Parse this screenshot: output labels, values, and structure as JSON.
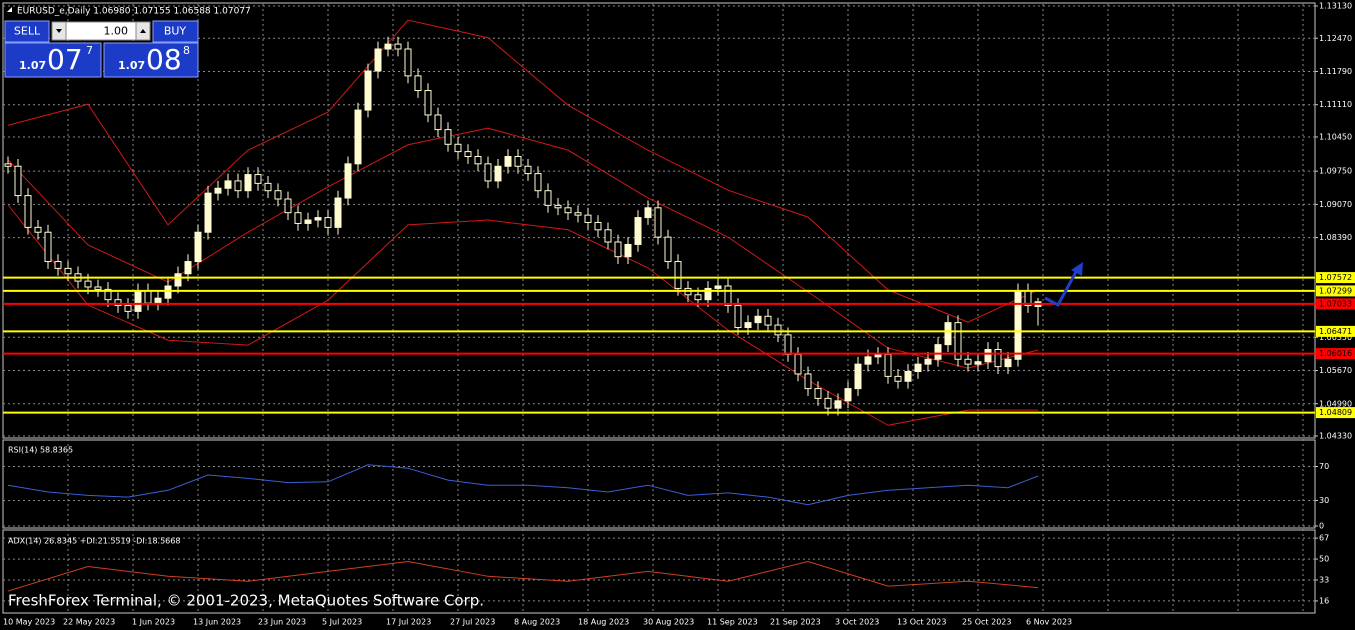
{
  "header": "EURUSD_e,Daily  1.06980 1.07155 1.06588 1.07077",
  "trade_panel": {
    "sell": "SELL",
    "buy": "BUY",
    "lot": "1.00",
    "bid": {
      "big": "1.07",
      "main": "07",
      "sup": "7"
    },
    "ask": {
      "big": "1.07",
      "main": "08",
      "sup": "8"
    }
  },
  "watermark": "FreshForex Terminal, © 2001-2023, MetaQuotes Software Corp.",
  "chart_data": [
    {
      "type": "candlestick",
      "up_color": "#fffbd0",
      "down_color": "#000000",
      "open": [
        1.099,
        1.0985,
        1.0925,
        1.086,
        1.085,
        1.079,
        1.0776,
        1.0765,
        1.075,
        1.0738,
        1.0733,
        1.0712,
        1.07,
        1.0688,
        1.073,
        1.0705,
        1.0715,
        1.074,
        1.0765,
        1.079,
        1.085,
        1.093,
        1.094,
        1.0955,
        1.0935,
        1.0968,
        1.095,
        1.0935,
        1.0918,
        1.089,
        1.0868,
        1.0875,
        1.088,
        1.086,
        1.092,
        1.099,
        1.11,
        1.118,
        1.1225,
        1.1235,
        1.1225,
        1.117,
        1.114,
        1.109,
        1.106,
        1.103,
        1.1015,
        1.1005,
        1.099,
        1.0955,
        1.0985,
        1.1005,
        1.0985,
        1.097,
        1.0935,
        1.0905,
        1.09,
        1.089,
        1.0885,
        1.087,
        1.0855,
        1.083,
        1.08,
        1.0825,
        1.088,
        1.09,
        1.084,
        1.079,
        1.0735,
        1.0722,
        1.0712,
        1.0735,
        1.074,
        1.07,
        1.0655,
        1.0665,
        1.0678,
        1.066,
        1.064,
        1.06,
        1.056,
        1.053,
        1.051,
        1.049,
        1.0505,
        1.053,
        1.058,
        1.0595,
        1.06,
        1.0555,
        1.0545,
        1.0565,
        1.058,
        1.059,
        1.062,
        1.0665,
        1.059,
        1.058,
        1.0585,
        1.061,
        1.0575,
        1.059,
        1.073,
        1.0698
      ],
      "high": [
        1.1005,
        1.1,
        1.094,
        1.0875,
        1.0865,
        1.0805,
        1.0791,
        1.078,
        1.0765,
        1.0753,
        1.0748,
        1.0727,
        1.0715,
        1.0745,
        1.0745,
        1.073,
        1.0755,
        1.078,
        1.0805,
        1.0865,
        1.0945,
        1.0955,
        1.097,
        1.097,
        1.0983,
        1.0983,
        1.0965,
        1.095,
        1.0933,
        1.0905,
        1.089,
        1.0895,
        1.0895,
        1.0935,
        1.1005,
        1.1115,
        1.1195,
        1.124,
        1.125,
        1.125,
        1.124,
        1.1185,
        1.1155,
        1.1105,
        1.1075,
        1.1045,
        1.103,
        1.102,
        1.1005,
        1.1,
        1.102,
        1.102,
        1.1,
        1.0985,
        1.095,
        1.092,
        1.0915,
        1.0905,
        1.09,
        1.0885,
        1.087,
        1.0845,
        1.084,
        1.0895,
        1.0915,
        1.0915,
        1.0855,
        1.0805,
        1.075,
        1.0737,
        1.075,
        1.0755,
        1.0755,
        1.0715,
        1.068,
        1.0693,
        1.0693,
        1.0675,
        1.0655,
        1.0615,
        1.0575,
        1.0545,
        1.0525,
        1.052,
        1.0545,
        1.0595,
        1.061,
        1.0615,
        1.0615,
        1.057,
        1.058,
        1.0595,
        1.0605,
        1.0635,
        1.068,
        1.068,
        1.0605,
        1.06,
        1.0625,
        1.0625,
        1.0605,
        1.0745,
        1.0745,
        1.07155
      ],
      "low": [
        1.097,
        1.091,
        1.0845,
        1.0835,
        1.0775,
        1.0761,
        1.075,
        1.0735,
        1.0723,
        1.0718,
        1.0697,
        1.0685,
        1.0673,
        1.0673,
        1.069,
        1.069,
        1.07,
        1.0725,
        1.075,
        1.0775,
        1.0835,
        1.0915,
        1.0925,
        1.092,
        1.092,
        1.0935,
        1.092,
        1.0903,
        1.0875,
        1.0853,
        1.0853,
        1.086,
        1.0845,
        1.0845,
        1.0905,
        1.0975,
        1.1085,
        1.1165,
        1.121,
        1.121,
        1.1155,
        1.1125,
        1.1075,
        1.1045,
        1.1015,
        1.1,
        1.099,
        1.0975,
        1.094,
        1.094,
        1.097,
        1.097,
        1.0955,
        1.092,
        1.089,
        1.0885,
        1.0875,
        1.087,
        1.0855,
        1.084,
        1.0815,
        1.0785,
        1.0785,
        1.081,
        1.0865,
        1.0825,
        1.0775,
        1.072,
        1.0707,
        1.0697,
        1.0697,
        1.072,
        1.0685,
        1.064,
        1.064,
        1.065,
        1.0645,
        1.0625,
        1.0585,
        1.0545,
        1.0515,
        1.0495,
        1.0475,
        1.0475,
        1.049,
        1.0515,
        1.0565,
        1.058,
        1.054,
        1.053,
        1.053,
        1.055,
        1.0565,
        1.0575,
        1.0605,
        1.0575,
        1.0565,
        1.0565,
        1.057,
        1.056,
        1.056,
        1.0575,
        1.0685,
        1.06588
      ],
      "close": [
        1.0985,
        1.0925,
        1.086,
        1.085,
        1.079,
        1.0776,
        1.0765,
        1.075,
        1.0738,
        1.0733,
        1.0712,
        1.07,
        1.0688,
        1.073,
        1.0705,
        1.0715,
        1.074,
        1.0765,
        1.079,
        1.085,
        1.093,
        1.094,
        1.0955,
        1.0935,
        1.0968,
        1.095,
        1.0935,
        1.0918,
        1.089,
        1.0868,
        1.0875,
        1.088,
        1.086,
        1.092,
        1.099,
        1.11,
        1.118,
        1.1225,
        1.1235,
        1.1225,
        1.117,
        1.114,
        1.109,
        1.106,
        1.103,
        1.1015,
        1.1005,
        1.099,
        1.0955,
        1.0985,
        1.1005,
        1.0985,
        1.097,
        1.0935,
        1.0905,
        1.09,
        1.089,
        1.0885,
        1.087,
        1.0855,
        1.083,
        1.08,
        1.0825,
        1.088,
        1.09,
        1.084,
        1.079,
        1.0735,
        1.0722,
        1.0712,
        1.0735,
        1.074,
        1.07,
        1.0655,
        1.0665,
        1.0678,
        1.066,
        1.064,
        1.06,
        1.056,
        1.053,
        1.051,
        1.049,
        1.0505,
        1.053,
        1.058,
        1.0595,
        1.06,
        1.0555,
        1.0545,
        1.0565,
        1.058,
        1.059,
        1.062,
        1.0665,
        1.059,
        1.058,
        1.0585,
        1.061,
        1.0575,
        1.059,
        1.073,
        1.07,
        1.07077
      ],
      "overlays": [
        {
          "color": "#d01818",
          "x": [
            0,
            8,
            16,
            24,
            32,
            40,
            48,
            56,
            64,
            72,
            80,
            88,
            96,
            103
          ],
          "values": [
            1.1069,
            1.1112,
            1.0865,
            1.1018,
            1.1096,
            1.1284,
            1.1248,
            1.111,
            1.1018,
            1.0936,
            1.0881,
            1.0732,
            1.0666,
            1.0732
          ]
        },
        {
          "color": "#d01818",
          "x": [
            0,
            8,
            16,
            24,
            32,
            40,
            48,
            56,
            64,
            72,
            80,
            88,
            96,
            103
          ],
          "values": [
            1.0998,
            1.0824,
            1.0748,
            1.085,
            1.0943,
            1.1029,
            1.1063,
            1.1018,
            1.092,
            1.084,
            1.0728,
            1.0613,
            1.0572,
            1.0609
          ]
        },
        {
          "color": "#d01818",
          "x": [
            0,
            8,
            16,
            24,
            32,
            40,
            48,
            56,
            64,
            72,
            80,
            88,
            96,
            103
          ],
          "values": [
            1.0906,
            1.0701,
            1.0629,
            1.0619,
            1.0711,
            1.0865,
            1.0875,
            1.0855,
            1.0777,
            1.065,
            1.0547,
            1.0455,
            1.0486,
            1.0486
          ]
        }
      ],
      "levels": [
        {
          "value": 1.07572,
          "color": "#ffff00"
        },
        {
          "value": 1.07299,
          "color": "#ffff00"
        },
        {
          "value": 1.07033,
          "color": "#ff0000"
        },
        {
          "value": 1.06471,
          "color": "#ffff00"
        },
        {
          "value": 1.06016,
          "color": "#ff0000"
        },
        {
          "value": 1.04809,
          "color": "#ffff00"
        }
      ],
      "ylim": [
        1.0433,
        1.1313
      ],
      "yticks": [
        {
          "value": 1.1313,
          "label": "1.13130"
        },
        {
          "value": 1.1247,
          "label": "1.12470"
        },
        {
          "value": 1.1179,
          "label": "1.11790"
        },
        {
          "value": 1.1111,
          "label": "1.11110"
        },
        {
          "value": 1.1045,
          "label": "1.10450"
        },
        {
          "value": 1.0975,
          "label": "1.09750"
        },
        {
          "value": 1.0907,
          "label": "1.09070"
        },
        {
          "value": 1.0839,
          "label": "1.08390"
        },
        {
          "value": 1.0635,
          "label": "1.06350"
        },
        {
          "value": 1.0567,
          "label": "1.05670"
        },
        {
          "value": 1.0499,
          "label": "1.04990"
        },
        {
          "value": 1.0433,
          "label": "1.04330"
        }
      ],
      "grid": true,
      "date_labels": [
        "10 May 2023",
        "22 May 2023",
        "1 Jun 2023",
        "13 Jun 2023",
        "23 Jun 2023",
        "5 Jul 2023",
        "17 Jul 2023",
        "27 Jul 2023",
        "8 Aug 2023",
        "18 Aug 2023",
        "30 Aug 2023",
        "11 Sep 2023",
        "21 Sep 2023",
        "3 Oct 2023",
        "13 Oct 2023",
        "25 Oct 2023",
        "6 Nov 2023"
      ]
    },
    {
      "type": "line",
      "title": "RSI(14) 58.8365",
      "color": "#3c5fd6",
      "x": [
        0,
        4,
        8,
        12,
        16,
        20,
        24,
        28,
        32,
        36,
        40,
        44,
        48,
        52,
        56,
        60,
        64,
        68,
        72,
        76,
        80,
        84,
        88,
        92,
        96,
        100,
        103
      ],
      "values": [
        48,
        40,
        36,
        34,
        42,
        60,
        56,
        51,
        52,
        72,
        68,
        54,
        48,
        48,
        45,
        40,
        48,
        36,
        39,
        34,
        25,
        36,
        42,
        45,
        48,
        45,
        58.8365
      ],
      "ylim": [
        0,
        100
      ],
      "yticks": [
        70,
        30,
        0
      ],
      "grid": true
    },
    {
      "type": "line",
      "title": "ADX(14) 26.8345 +DI:21.5519 -DI:18.5668",
      "color": "#d04020",
      "x": [
        0,
        8,
        16,
        24,
        32,
        40,
        48,
        56,
        64,
        72,
        80,
        88,
        96,
        103
      ],
      "values": [
        24,
        44,
        36,
        32,
        40,
        48,
        36,
        32,
        40,
        32,
        48,
        28,
        32,
        26.8345
      ],
      "ylim": [
        7,
        72
      ],
      "yticks": [
        67,
        50,
        33,
        16
      ],
      "grid": true
    }
  ]
}
